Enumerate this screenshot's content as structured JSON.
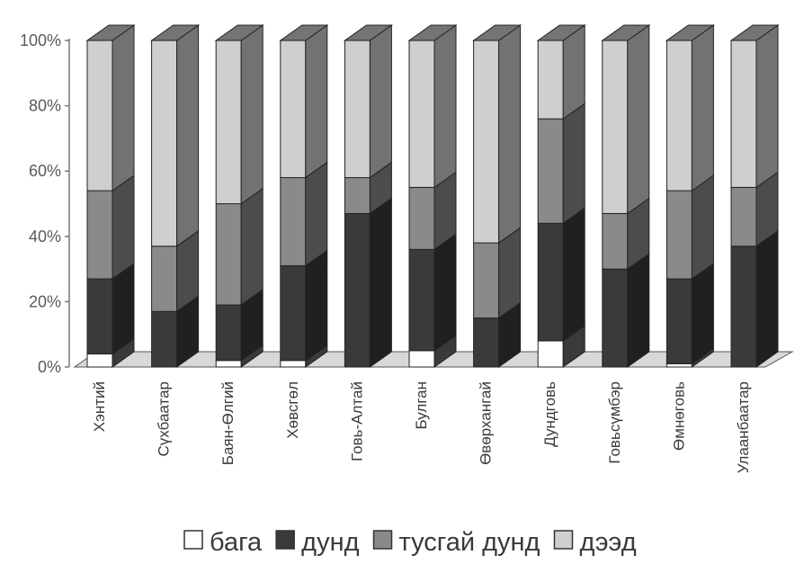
{
  "chart_data": {
    "type": "bar",
    "stacked": "percent",
    "three_d": true,
    "categories": [
      "Хэнтий",
      "Сүхбаатар",
      "Баян-Өлгий",
      "Хөвсгөл",
      "Говь-Алтай",
      "Булган",
      "Өвөрхангай",
      "Дундговь",
      "Говьсүмбэр",
      "Өмнөговь",
      "Улаанбаатар"
    ],
    "series": [
      {
        "name": "бага",
        "color": "#ffffff",
        "values": [
          4,
          0,
          2,
          2,
          0,
          5,
          0,
          8,
          0,
          1,
          0
        ]
      },
      {
        "name": "дунд",
        "color": "#3a3a3a",
        "values": [
          23,
          17,
          17,
          29,
          47,
          31,
          15,
          36,
          30,
          26,
          37
        ]
      },
      {
        "name": "тусгай дунд",
        "color": "#8a8a8a",
        "values": [
          27,
          20,
          31,
          27,
          11,
          19,
          23,
          32,
          17,
          27,
          18
        ]
      },
      {
        "name": "дээд",
        "color": "#cfcfcf",
        "values": [
          46,
          63,
          50,
          42,
          42,
          45,
          62,
          24,
          53,
          46,
          45
        ]
      }
    ],
    "yticks": [
      "0%",
      "20%",
      "40%",
      "60%",
      "80%",
      "100%"
    ],
    "ylim": [
      0,
      100
    ],
    "grid": false,
    "legend_position": "bottom-right"
  }
}
